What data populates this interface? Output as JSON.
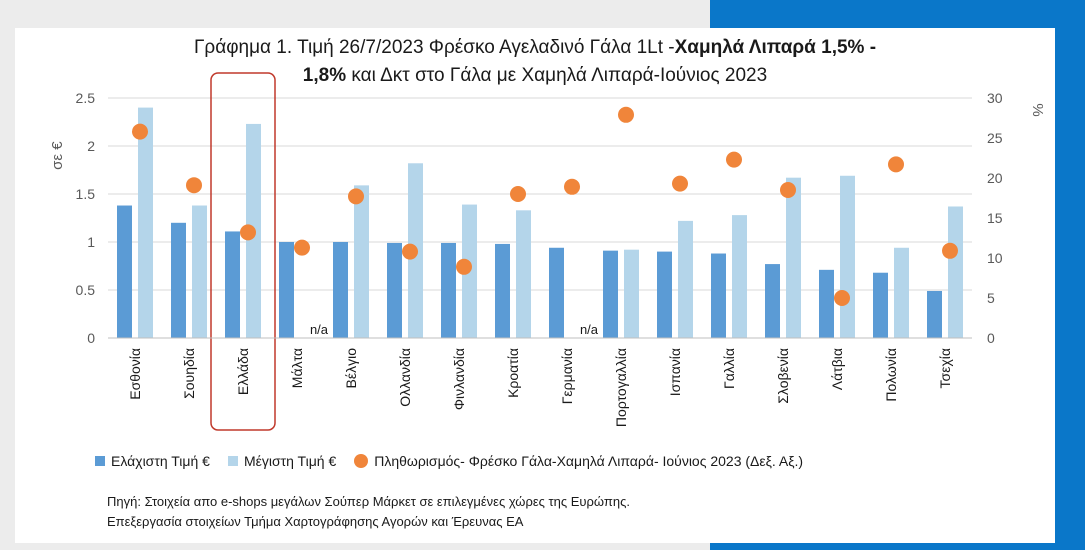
{
  "colors": {
    "min_bar": "#5b9bd5",
    "max_bar": "#b4d5ea",
    "inflation": "#f0853a",
    "highlight": "#c0392b",
    "panel": "#0a77c9",
    "grid": "#d9d9d9"
  },
  "title": {
    "part1": "Γράφημα 1. Τιμή 26/7/2023 Φρέσκο Αγελαδινό Γάλα 1Lt -",
    "part1_bold": "Χαμηλά Λιπαρά 1,5% -",
    "part2_bold": "1,8%",
    "part2": " και Δκτ στο Γάλα με Χαμηλά Λιπαρά-Ιούνιος 2023"
  },
  "chart_data": {
    "type": "bar",
    "categories": [
      "Εσθονία",
      "Σουηδία",
      "Ελλάδα",
      "Μάλτα",
      "Βέλγιο",
      "Ολλανδία",
      "Φινλανδία",
      "Κροατία",
      "Γερμανία",
      "Πορτογαλλία",
      "Ισπανία",
      "Γαλλία",
      "Σλοβενία",
      "Λάτβια",
      "Πολωνία",
      "Τσεχία"
    ],
    "highlight_category": "Ελλάδα",
    "series": [
      {
        "name": "Ελάχιστη Τιμή €",
        "type": "bar",
        "axis": "left",
        "values": [
          1.38,
          1.2,
          1.11,
          1.0,
          1.0,
          0.99,
          0.99,
          0.98,
          0.94,
          0.91,
          0.9,
          0.88,
          0.77,
          0.71,
          0.68,
          0.49
        ]
      },
      {
        "name": "Μέγιστη Τιμή €",
        "type": "bar",
        "axis": "left",
        "values": [
          2.4,
          1.38,
          2.23,
          null,
          1.59,
          1.82,
          1.39,
          1.33,
          null,
          0.92,
          1.22,
          1.28,
          1.67,
          1.69,
          0.94,
          1.37
        ]
      },
      {
        "name": "Πληθωρισμός- Φρέσκο Γάλα-Χαμηλά Λιπαρά- Ιούνιος 2023 (Δεξ. Αξ.)",
        "type": "scatter",
        "axis": "right",
        "values": [
          25.8,
          19.1,
          13.2,
          11.3,
          17.7,
          10.8,
          8.9,
          18.0,
          18.9,
          27.9,
          19.3,
          22.3,
          18.5,
          5.0,
          21.7,
          10.9
        ]
      }
    ],
    "na_label": "n/a",
    "y_left": {
      "label": "σε €",
      "ylim": [
        0,
        2.5
      ],
      "ticks": [
        "0",
        "0.5",
        "1",
        "1.5",
        "2",
        "2.5"
      ]
    },
    "y_right": {
      "label": "%",
      "ylim": [
        0,
        30
      ],
      "ticks": [
        "0",
        "5",
        "10",
        "15",
        "20",
        "25",
        "30"
      ]
    },
    "grid": true,
    "legend_position": "bottom"
  },
  "source": {
    "line1": "Πηγή: Στοιχεία απο e-shops μεγάλων Σούπερ Μάρκετ σε επιλεγμένες χώρες της Ευρώπης.",
    "line2": "Επεξεργασία στοιχείων Τμήμα Χαρτογράφησης Αγορών και Έρευνας ΕΑ"
  }
}
